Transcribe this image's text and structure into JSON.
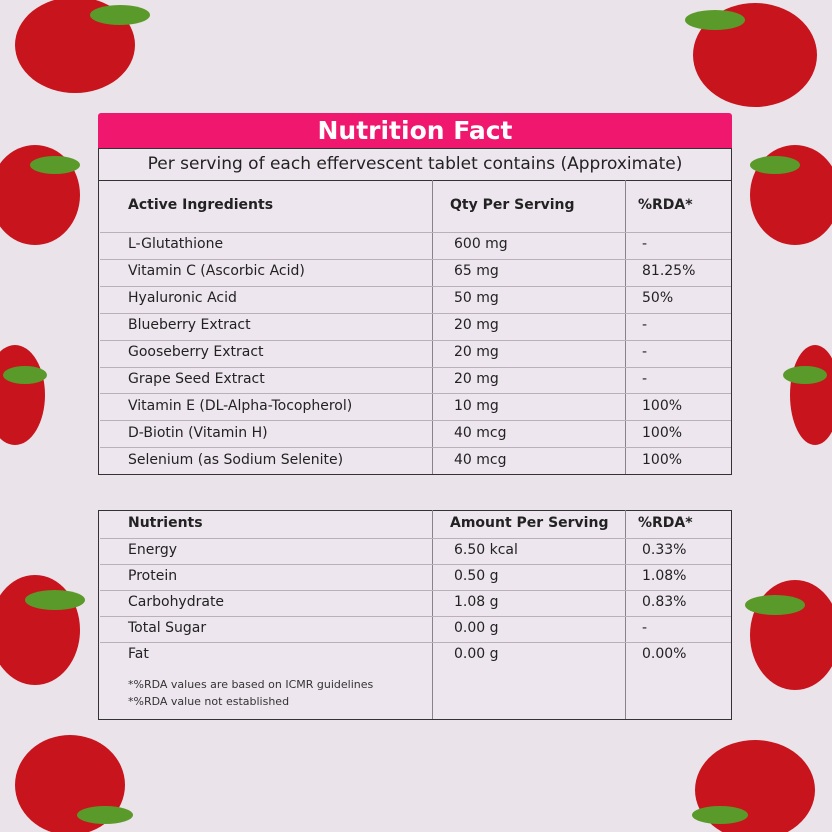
{
  "title": "Nutrition Fact",
  "subtitle": "Per serving of each effervescent tablet contains (Approximate)",
  "ingredients_table": {
    "header": [
      "Active Ingredients",
      "Qty Per Serving",
      "%RDA*"
    ],
    "rows": [
      [
        "L-Glutathione",
        "600 mg",
        "-"
      ],
      [
        "Vitamin C (Ascorbic Acid)",
        "65 mg",
        "81.25%"
      ],
      [
        "Hyaluronic Acid",
        "50 mg",
        "50%"
      ],
      [
        "Blueberry Extract",
        "20 mg",
        "-"
      ],
      [
        "Gooseberry Extract",
        "20 mg",
        "-"
      ],
      [
        "Grape Seed Extract",
        "20 mg",
        "-"
      ],
      [
        "Vitamin E (DL-Alpha-Tocopherol)",
        "10 mg",
        "100%"
      ],
      [
        "D-Biotin (Vitamin H)",
        "40 mcg",
        "100%"
      ],
      [
        "Selenium (as Sodium Selenite)",
        "40 mcg",
        "100%"
      ]
    ]
  },
  "nutrients_table": {
    "header": [
      "Nutrients",
      "Amount Per Serving",
      "%RDA*"
    ],
    "rows": [
      [
        "Energy",
        "6.50 kcal",
        "0.33%"
      ],
      [
        "Protein",
        "0.50 g",
        "1.08%"
      ],
      [
        "Carbohydrate",
        "1.08 g",
        "0.83%"
      ],
      [
        "Total Sugar",
        "0.00 g",
        "-"
      ],
      [
        "Fat",
        "0.00 g",
        "0.00%"
      ]
    ],
    "footnotes": [
      "*%RDA values are based on ICMR guidelines",
      "*%RDA value not established"
    ]
  }
}
